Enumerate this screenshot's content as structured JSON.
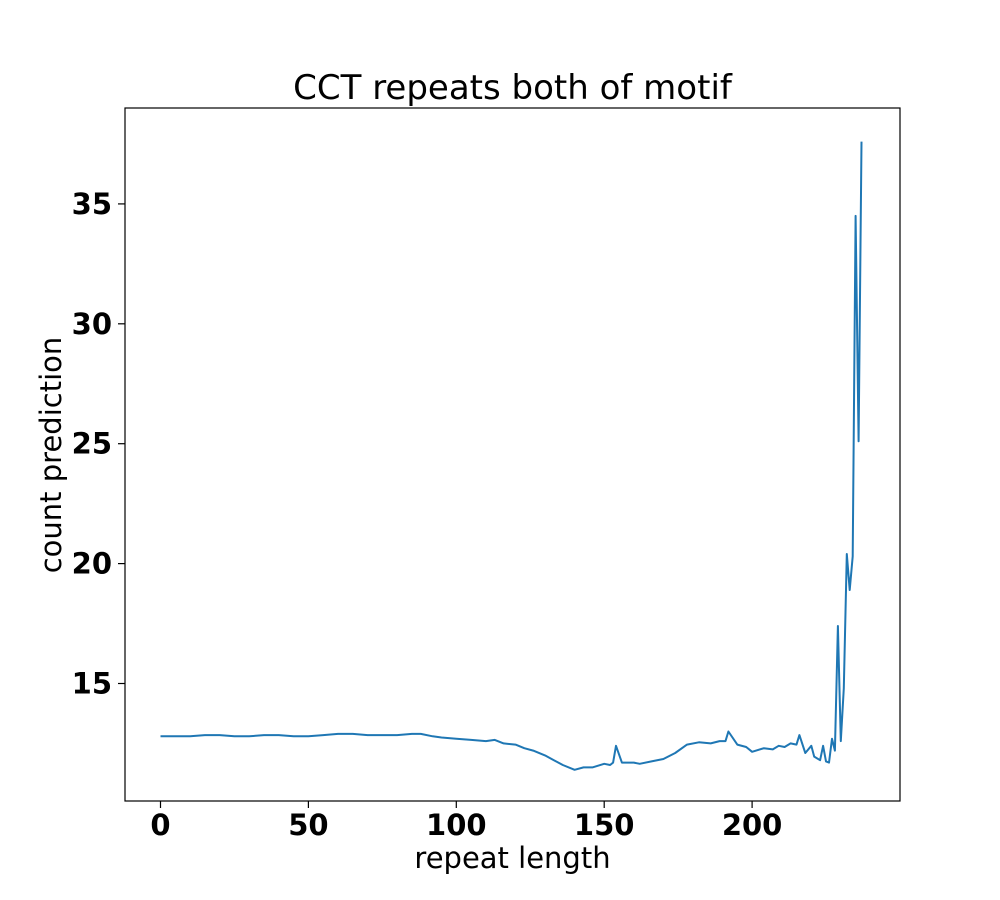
{
  "chart_data": {
    "type": "line",
    "title": "CCT repeats both of motif",
    "xlabel": "repeat length",
    "ylabel": "count prediction",
    "xlim": [
      -12,
      250
    ],
    "ylim": [
      10.1,
      39.0
    ],
    "xticks": [
      0,
      50,
      100,
      150,
      200
    ],
    "yticks": [
      15,
      20,
      25,
      30,
      35
    ],
    "grid": false,
    "color": "#1f77b4",
    "series": [
      {
        "x": [
          0,
          5,
          10,
          15,
          20,
          25,
          30,
          35,
          40,
          45,
          50,
          55,
          60,
          65,
          70,
          75,
          80,
          85,
          88,
          92,
          95,
          100,
          105,
          110,
          113,
          116,
          120,
          123,
          126,
          130,
          133,
          136,
          140,
          143,
          146,
          150,
          152,
          153,
          154,
          156,
          160,
          162,
          166,
          170,
          174,
          178,
          182,
          186,
          189,
          191,
          192,
          195,
          198,
          200,
          204,
          207,
          209,
          211,
          213,
          215,
          216,
          218,
          220,
          221,
          223,
          224,
          225,
          226,
          227,
          228,
          229,
          230,
          231,
          232,
          233,
          234,
          235,
          236,
          237
        ],
        "y": [
          12.8,
          12.8,
          12.8,
          12.85,
          12.85,
          12.8,
          12.8,
          12.85,
          12.85,
          12.8,
          12.8,
          12.85,
          12.9,
          12.9,
          12.85,
          12.85,
          12.85,
          12.9,
          12.9,
          12.8,
          12.75,
          12.7,
          12.65,
          12.6,
          12.65,
          12.5,
          12.45,
          12.3,
          12.2,
          12.0,
          11.8,
          11.6,
          11.4,
          11.5,
          11.5,
          11.65,
          11.6,
          11.7,
          12.4,
          11.7,
          11.7,
          11.65,
          11.75,
          11.85,
          12.1,
          12.45,
          12.55,
          12.5,
          12.6,
          12.6,
          13.0,
          12.45,
          12.35,
          12.15,
          12.3,
          12.25,
          12.4,
          12.35,
          12.5,
          12.45,
          12.85,
          12.1,
          12.4,
          11.95,
          11.8,
          12.4,
          11.75,
          11.7,
          12.7,
          12.2,
          17.4,
          12.6,
          14.8,
          20.4,
          18.9,
          20.3,
          34.5,
          25.1,
          37.6
        ]
      }
    ]
  }
}
